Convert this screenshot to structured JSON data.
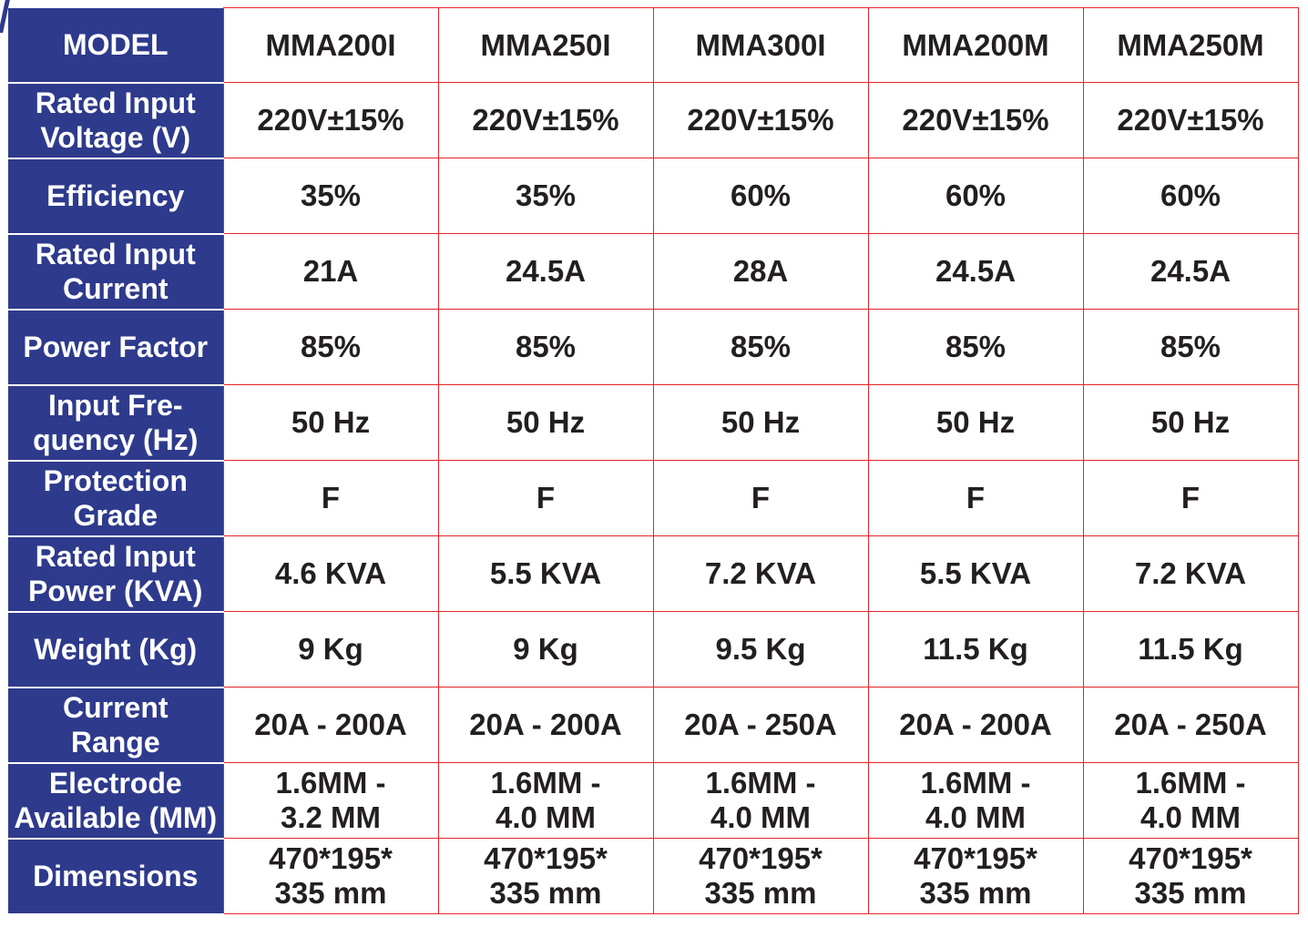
{
  "table": {
    "header": {
      "label": "MODEL",
      "models": [
        "MMA200I",
        "MMA250I",
        "MMA300I",
        "MMA200M",
        "MMA250M"
      ]
    },
    "rows": [
      {
        "label": "Rated Input\nVoltage (V)",
        "values": [
          "220V±15%",
          "220V±15%",
          "220V±15%",
          "220V±15%",
          "220V±15%"
        ]
      },
      {
        "label": "Efficiency",
        "values": [
          "35%",
          "35%",
          "60%",
          "60%",
          "60%"
        ]
      },
      {
        "label": "Rated Input\nCurrent",
        "values": [
          "21A",
          "24.5A",
          "28A",
          "24.5A",
          "24.5A"
        ]
      },
      {
        "label": "Power Factor",
        "values": [
          "85%",
          "85%",
          "85%",
          "85%",
          "85%"
        ]
      },
      {
        "label": "Input Fre-\nquency (Hz)",
        "values": [
          "50 Hz",
          "50 Hz",
          "50 Hz",
          "50 Hz",
          "50 Hz"
        ]
      },
      {
        "label": "Protection\nGrade",
        "values": [
          "F",
          "F",
          "F",
          "F",
          "F"
        ]
      },
      {
        "label": "Rated Input\nPower (KVA)",
        "values": [
          "4.6 KVA",
          "5.5 KVA",
          "7.2 KVA",
          "5.5 KVA",
          "7.2 KVA"
        ]
      },
      {
        "label": "Weight (Kg)",
        "values": [
          "9 Kg",
          "9 Kg",
          "9.5 Kg",
          "11.5 Kg",
          "11.5 Kg"
        ]
      },
      {
        "label": "Current\nRange",
        "values": [
          "20A - 200A",
          "20A - 200A",
          "20A - 250A",
          "20A - 200A",
          "20A - 250A"
        ]
      },
      {
        "label": "Electrode\nAvailable (MM)",
        "values": [
          "1.6MM -\n3.2 MM",
          "1.6MM -\n4.0 MM",
          "1.6MM -\n4.0 MM",
          "1.6MM -\n4.0 MM",
          "1.6MM -\n4.0 MM"
        ]
      },
      {
        "label": "Dimensions",
        "values": [
          "470*195*\n335 mm",
          "470*195*\n335 mm",
          "470*195*\n335 mm",
          "470*195*\n335 mm",
          "470*195*\n335 mm"
        ]
      }
    ]
  },
  "colors": {
    "header_fill": "#2e3a8c",
    "grid_line": "#e8232a",
    "text": "#231f20"
  }
}
